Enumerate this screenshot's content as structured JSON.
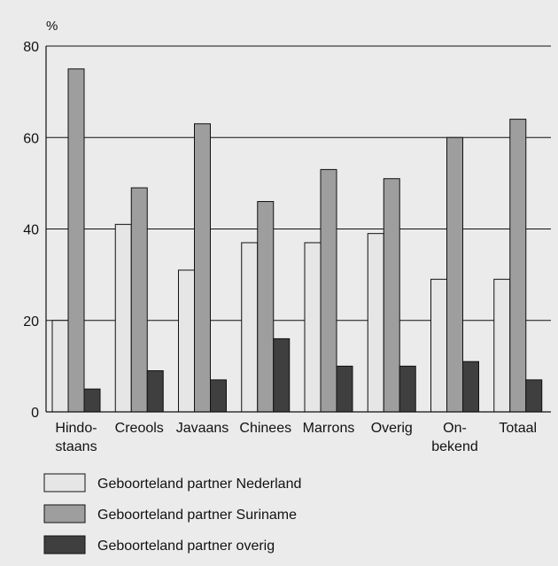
{
  "chart_data": {
    "type": "bar",
    "ylabel": "%",
    "ylim": [
      0,
      80
    ],
    "yticks": [
      "0",
      "20",
      "40",
      "60",
      "80"
    ],
    "grid": true,
    "categories": [
      [
        "Hindo-",
        "staans"
      ],
      [
        "Creools"
      ],
      [
        "Javaans"
      ],
      [
        "Chinees"
      ],
      [
        "Marrons"
      ],
      [
        "Overig"
      ],
      [
        "On-",
        "bekend"
      ],
      [
        "Totaal"
      ]
    ],
    "series": [
      {
        "name": "Geboorteland partner Nederland",
        "color": "#e6e6e6",
        "values": [
          20,
          41,
          31,
          37,
          37,
          39,
          29,
          29
        ]
      },
      {
        "name": "Geboorteland partner Suriname",
        "color": "#9e9e9e",
        "values": [
          75,
          49,
          63,
          46,
          53,
          51,
          60,
          64
        ]
      },
      {
        "name": "Geboorteland partner overig",
        "color": "#3f3f3f",
        "values": [
          5,
          9,
          7,
          16,
          10,
          10,
          11,
          7
        ]
      }
    ],
    "legend_position": "bottom"
  }
}
